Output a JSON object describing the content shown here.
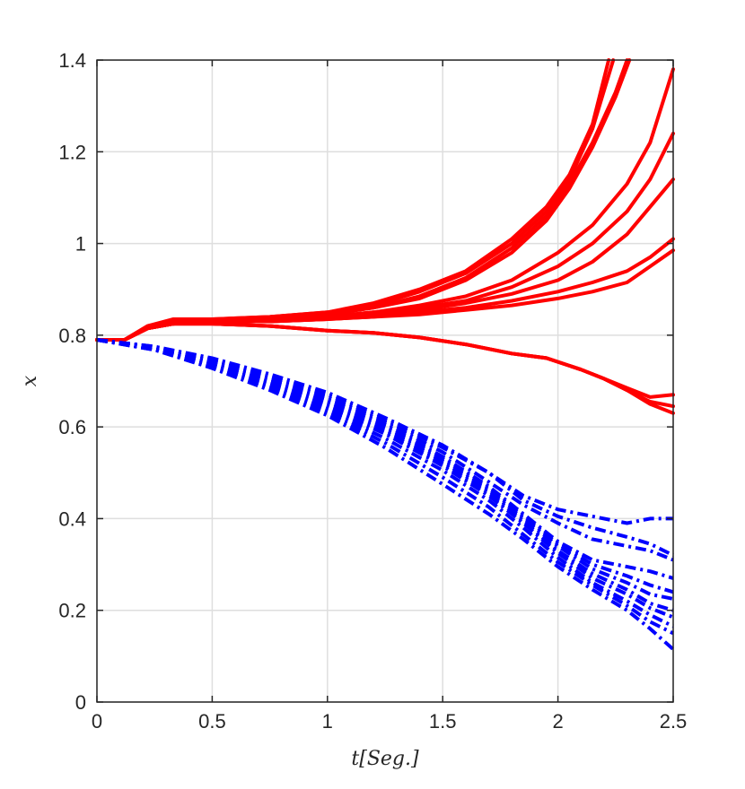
{
  "chart_data": {
    "type": "line",
    "title": "",
    "xlabel": "t[Seg.]",
    "ylabel": "x",
    "xlim": [
      0,
      2.5
    ],
    "ylim": [
      0,
      1.4
    ],
    "xticks": [
      "0",
      "0.5",
      "1",
      "1.5",
      "2",
      "2.5"
    ],
    "yticks": [
      "0",
      "0.2",
      "0.4",
      "0.6",
      "0.8",
      "1",
      "1.2",
      "1.4"
    ],
    "grid": true,
    "legend": "none",
    "colors": {
      "red_series": "#ff0000",
      "blue_series": "#0000ff",
      "grid": "#dedede",
      "axis": "#262626"
    },
    "series": [
      {
        "group": "red",
        "style": "solid",
        "x": [
          0,
          0.12,
          0.22,
          0.33,
          0.5,
          0.75,
          1.0,
          1.2,
          1.4,
          1.6,
          1.8,
          1.95,
          2.05,
          2.15,
          2.22
        ],
        "y": [
          0.79,
          0.79,
          0.82,
          0.835,
          0.835,
          0.84,
          0.85,
          0.87,
          0.9,
          0.94,
          1.01,
          1.08,
          1.15,
          1.26,
          1.4
        ]
      },
      {
        "group": "red",
        "style": "solid",
        "x": [
          0,
          0.12,
          0.22,
          0.33,
          0.5,
          0.75,
          1.0,
          1.2,
          1.4,
          1.6,
          1.8,
          1.95,
          2.05,
          2.15,
          2.24
        ],
        "y": [
          0.79,
          0.79,
          0.82,
          0.83,
          0.835,
          0.84,
          0.85,
          0.865,
          0.895,
          0.935,
          1.0,
          1.07,
          1.14,
          1.25,
          1.4
        ]
      },
      {
        "group": "red",
        "style": "solid",
        "x": [
          0,
          0.12,
          0.22,
          0.33,
          0.5,
          0.75,
          1.0,
          1.2,
          1.4,
          1.6,
          1.8,
          1.95,
          2.05,
          2.15,
          2.25,
          2.3
        ],
        "y": [
          0.79,
          0.79,
          0.815,
          0.83,
          0.83,
          0.835,
          0.845,
          0.86,
          0.885,
          0.925,
          0.99,
          1.06,
          1.13,
          1.22,
          1.33,
          1.4
        ]
      },
      {
        "group": "red",
        "style": "solid",
        "x": [
          0,
          0.12,
          0.22,
          0.33,
          0.5,
          0.75,
          1.0,
          1.2,
          1.4,
          1.6,
          1.8,
          1.95,
          2.05,
          2.15,
          2.25,
          2.31
        ],
        "y": [
          0.79,
          0.79,
          0.815,
          0.83,
          0.83,
          0.835,
          0.845,
          0.86,
          0.88,
          0.92,
          0.98,
          1.05,
          1.12,
          1.21,
          1.32,
          1.4
        ]
      },
      {
        "group": "red",
        "style": "solid",
        "x": [
          0,
          0.12,
          0.22,
          0.33,
          0.5,
          0.75,
          1.0,
          1.2,
          1.4,
          1.6,
          1.8,
          2.0,
          2.15,
          2.3,
          2.4,
          2.5
        ],
        "y": [
          0.79,
          0.79,
          0.815,
          0.825,
          0.83,
          0.83,
          0.84,
          0.85,
          0.865,
          0.885,
          0.92,
          0.98,
          1.04,
          1.13,
          1.22,
          1.38
        ]
      },
      {
        "group": "red",
        "style": "solid",
        "x": [
          0,
          0.12,
          0.22,
          0.33,
          0.5,
          0.75,
          1.0,
          1.2,
          1.4,
          1.6,
          1.8,
          2.0,
          2.15,
          2.3,
          2.4,
          2.5
        ],
        "y": [
          0.79,
          0.79,
          0.815,
          0.825,
          0.83,
          0.83,
          0.84,
          0.85,
          0.86,
          0.875,
          0.905,
          0.95,
          1.0,
          1.07,
          1.14,
          1.24
        ]
      },
      {
        "group": "red",
        "style": "solid",
        "x": [
          0,
          0.12,
          0.22,
          0.33,
          0.5,
          0.75,
          1.0,
          1.2,
          1.4,
          1.6,
          1.8,
          2.0,
          2.15,
          2.3,
          2.4,
          2.5
        ],
        "y": [
          0.79,
          0.79,
          0.815,
          0.825,
          0.83,
          0.83,
          0.835,
          0.845,
          0.855,
          0.87,
          0.89,
          0.92,
          0.96,
          1.02,
          1.08,
          1.14
        ]
      },
      {
        "group": "red",
        "style": "solid",
        "x": [
          0,
          0.12,
          0.22,
          0.33,
          0.5,
          0.75,
          1.0,
          1.2,
          1.4,
          1.6,
          1.8,
          2.0,
          2.15,
          2.3,
          2.4,
          2.5
        ],
        "y": [
          0.79,
          0.79,
          0.815,
          0.825,
          0.83,
          0.83,
          0.835,
          0.84,
          0.85,
          0.86,
          0.875,
          0.895,
          0.915,
          0.94,
          0.97,
          1.01
        ]
      },
      {
        "group": "red",
        "style": "solid",
        "x": [
          0,
          0.12,
          0.22,
          0.33,
          0.5,
          0.75,
          1.0,
          1.2,
          1.4,
          1.6,
          1.8,
          2.0,
          2.15,
          2.3,
          2.4,
          2.5
        ],
        "y": [
          0.79,
          0.79,
          0.815,
          0.825,
          0.83,
          0.83,
          0.835,
          0.84,
          0.845,
          0.855,
          0.865,
          0.88,
          0.895,
          0.915,
          0.95,
          0.985
        ]
      },
      {
        "group": "red",
        "style": "solid",
        "x": [
          0,
          0.12,
          0.22,
          0.33,
          0.5,
          0.75,
          1.0,
          1.2,
          1.4,
          1.6,
          1.8,
          1.95,
          2.1,
          2.2,
          2.3,
          2.4,
          2.5
        ],
        "y": [
          0.79,
          0.79,
          0.815,
          0.825,
          0.825,
          0.82,
          0.81,
          0.805,
          0.795,
          0.78,
          0.76,
          0.75,
          0.725,
          0.705,
          0.685,
          0.665,
          0.67
        ]
      },
      {
        "group": "red",
        "style": "solid",
        "x": [
          0,
          0.12,
          0.22,
          0.33,
          0.5,
          0.75,
          1.0,
          1.2,
          1.4,
          1.6,
          1.8,
          1.95,
          2.1,
          2.2,
          2.3,
          2.4,
          2.5
        ],
        "y": [
          0.79,
          0.79,
          0.815,
          0.825,
          0.825,
          0.82,
          0.81,
          0.805,
          0.795,
          0.78,
          0.76,
          0.75,
          0.725,
          0.705,
          0.68,
          0.655,
          0.645
        ]
      },
      {
        "group": "red",
        "style": "solid",
        "x": [
          0,
          0.12,
          0.22,
          0.33,
          0.5,
          0.75,
          1.0,
          1.2,
          1.4,
          1.6,
          1.8,
          1.95,
          2.1,
          2.2,
          2.3,
          2.4,
          2.5
        ],
        "y": [
          0.79,
          0.79,
          0.815,
          0.825,
          0.825,
          0.82,
          0.81,
          0.805,
          0.795,
          0.78,
          0.76,
          0.75,
          0.725,
          0.705,
          0.68,
          0.65,
          0.63
        ]
      },
      {
        "group": "blue",
        "style": "dashdot",
        "x": [
          0,
          0.25,
          0.5,
          0.75,
          1.0,
          1.25,
          1.5,
          1.7,
          1.85,
          2.0,
          2.15,
          2.3,
          2.4,
          2.5
        ],
        "y": [
          0.79,
          0.775,
          0.75,
          0.715,
          0.675,
          0.62,
          0.56,
          0.5,
          0.45,
          0.42,
          0.405,
          0.39,
          0.4,
          0.4
        ]
      },
      {
        "group": "blue",
        "style": "dashdot",
        "x": [
          0,
          0.25,
          0.5,
          0.75,
          1.0,
          1.25,
          1.5,
          1.7,
          1.85,
          2.0,
          2.15,
          2.3,
          2.4,
          2.5
        ],
        "y": [
          0.79,
          0.775,
          0.748,
          0.71,
          0.67,
          0.615,
          0.555,
          0.5,
          0.44,
          0.405,
          0.38,
          0.36,
          0.345,
          0.32
        ]
      },
      {
        "group": "blue",
        "style": "dashdot",
        "x": [
          0,
          0.25,
          0.5,
          0.75,
          1.0,
          1.25,
          1.5,
          1.7,
          1.85,
          2.0,
          2.15,
          2.3,
          2.4,
          2.5
        ],
        "y": [
          0.79,
          0.773,
          0.745,
          0.705,
          0.665,
          0.61,
          0.545,
          0.48,
          0.43,
          0.39,
          0.355,
          0.34,
          0.33,
          0.31
        ]
      },
      {
        "group": "blue",
        "style": "dashdot",
        "x": [
          0,
          0.25,
          0.5,
          0.75,
          1.0,
          1.25,
          1.5,
          1.7,
          1.85,
          2.0,
          2.15,
          2.3,
          2.4,
          2.5
        ],
        "y": [
          0.79,
          0.772,
          0.742,
          0.7,
          0.66,
          0.605,
          0.535,
          0.47,
          0.41,
          0.35,
          0.31,
          0.295,
          0.285,
          0.27
        ]
      },
      {
        "group": "blue",
        "style": "dashdot",
        "x": [
          0,
          0.25,
          0.5,
          0.75,
          1.0,
          1.25,
          1.5,
          1.7,
          1.85,
          2.0,
          2.15,
          2.3,
          2.4,
          2.5
        ],
        "y": [
          0.79,
          0.772,
          0.74,
          0.698,
          0.655,
          0.6,
          0.53,
          0.465,
          0.405,
          0.345,
          0.3,
          0.275,
          0.255,
          0.24
        ]
      },
      {
        "group": "blue",
        "style": "dashdot",
        "x": [
          0,
          0.25,
          0.5,
          0.75,
          1.0,
          1.25,
          1.5,
          1.7,
          1.85,
          2.0,
          2.15,
          2.3,
          2.4,
          2.5
        ],
        "y": [
          0.79,
          0.771,
          0.738,
          0.695,
          0.65,
          0.595,
          0.525,
          0.46,
          0.4,
          0.34,
          0.29,
          0.26,
          0.235,
          0.225
        ]
      },
      {
        "group": "blue",
        "style": "dashdot",
        "x": [
          0,
          0.25,
          0.5,
          0.75,
          1.0,
          1.25,
          1.5,
          1.7,
          1.85,
          2.0,
          2.15,
          2.3,
          2.4,
          2.5
        ],
        "y": [
          0.79,
          0.77,
          0.736,
          0.692,
          0.645,
          0.59,
          0.52,
          0.455,
          0.395,
          0.33,
          0.28,
          0.245,
          0.215,
          0.2
        ]
      },
      {
        "group": "blue",
        "style": "dashdot",
        "x": [
          0,
          0.25,
          0.5,
          0.75,
          1.0,
          1.25,
          1.5,
          1.7,
          1.85,
          2.0,
          2.15,
          2.3,
          2.4,
          2.5
        ],
        "y": [
          0.79,
          0.77,
          0.734,
          0.69,
          0.64,
          0.585,
          0.515,
          0.45,
          0.39,
          0.325,
          0.27,
          0.235,
          0.205,
          0.185
        ]
      },
      {
        "group": "blue",
        "style": "dashdot",
        "x": [
          0,
          0.25,
          0.5,
          0.75,
          1.0,
          1.25,
          1.5,
          1.7,
          1.85,
          2.0,
          2.15,
          2.3,
          2.4,
          2.5
        ],
        "y": [
          0.79,
          0.769,
          0.732,
          0.687,
          0.635,
          0.575,
          0.505,
          0.44,
          0.38,
          0.315,
          0.26,
          0.22,
          0.19,
          0.165
        ]
      },
      {
        "group": "blue",
        "style": "dashdot",
        "x": [
          0,
          0.25,
          0.5,
          0.75,
          1.0,
          1.25,
          1.5,
          1.7,
          1.85,
          2.0,
          2.15,
          2.3,
          2.4,
          2.5
        ],
        "y": [
          0.79,
          0.768,
          0.73,
          0.684,
          0.63,
          0.565,
          0.49,
          0.425,
          0.365,
          0.305,
          0.255,
          0.21,
          0.175,
          0.15
        ]
      },
      {
        "group": "blue",
        "style": "dashdot",
        "x": [
          0,
          0.25,
          0.5,
          0.75,
          1.0,
          1.25,
          1.5,
          1.7,
          1.85,
          2.0,
          2.15,
          2.3,
          2.4,
          2.5
        ],
        "y": [
          0.79,
          0.768,
          0.728,
          0.68,
          0.625,
          0.555,
          0.475,
          0.41,
          0.355,
          0.295,
          0.245,
          0.2,
          0.16,
          0.115
        ]
      }
    ]
  }
}
